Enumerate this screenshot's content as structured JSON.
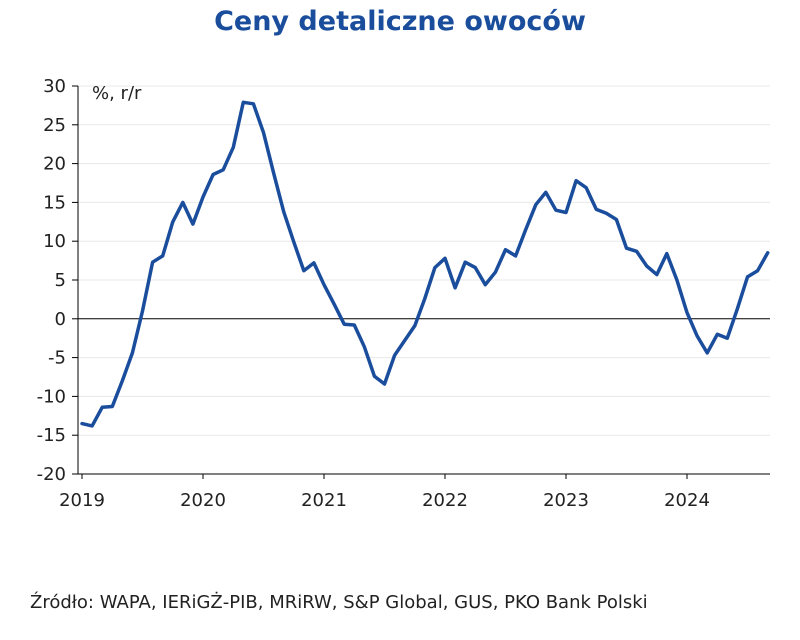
{
  "title": "Ceny detaliczne owoców",
  "source": "Źródło: WAPA, IERiGŻ-PIB, MRiRW, S&P Global, GUS, PKO Bank Polski",
  "colors": {
    "title": "#1a4d9c",
    "line": "#1a4d9c",
    "axis": "#000000",
    "grid": "#e8e8e8",
    "text": "#222222"
  },
  "chart_data": {
    "type": "line",
    "title": "Ceny detaliczne owoców",
    "ylabel": "%, r/r",
    "xlabel": "",
    "ylim": [
      -20,
      30
    ],
    "yticks": [
      -20,
      -15,
      -10,
      -5,
      0,
      5,
      10,
      15,
      20,
      25,
      30
    ],
    "xticks": [
      "2019",
      "2020",
      "2021",
      "2022",
      "2023",
      "2024"
    ],
    "x_start": "2019-01",
    "frequency": "monthly",
    "grid": true,
    "series": [
      {
        "values": [
          -13.5,
          -13.8,
          -11.4,
          -11.3,
          -8.0,
          -4.4,
          1.0,
          7.3,
          8.1,
          12.5,
          15.0,
          12.2,
          15.7,
          18.6,
          19.2,
          22.1,
          27.9,
          27.7,
          24.0,
          18.8,
          13.8,
          9.9,
          6.2,
          7.2,
          4.4,
          1.9,
          -0.7,
          -0.8,
          -3.6,
          -7.4,
          -8.4,
          -4.7,
          -2.8,
          -0.9,
          2.6,
          6.6,
          7.8,
          4.0,
          7.3,
          6.6,
          4.4,
          6.0,
          8.9,
          8.1,
          11.5,
          14.7,
          16.3,
          14.0,
          13.7,
          17.8,
          16.9,
          14.1,
          13.6,
          12.8,
          9.1,
          8.7,
          6.8,
          5.7,
          8.4,
          5.0,
          0.8,
          -2.2,
          -4.4,
          -2.0,
          -2.5,
          1.3,
          5.4,
          6.2,
          8.5
        ]
      }
    ]
  }
}
